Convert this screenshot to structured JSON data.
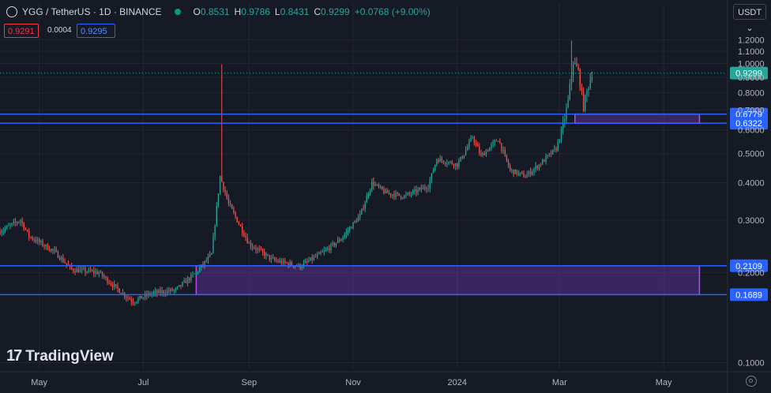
{
  "header": {
    "title": "YGG / TetherUS · 1D · BINANCE",
    "open_label": "O",
    "open": "0.8531",
    "high_label": "H",
    "high": "0.9786",
    "low_label": "L",
    "low": "0.8431",
    "close_label": "C",
    "close": "0.9299",
    "change": "+0.0768 (+9.00%)"
  },
  "trade": {
    "sell": "0.9291",
    "spread": "0.0004",
    "buy": "0.9295"
  },
  "currency_button": "USDT",
  "watermark": "TradingView",
  "colors": {
    "up": "#26a69a",
    "down": "#ef5350",
    "background": "#161a25",
    "level_line": "#2962ff",
    "zone_fill": "#7b3fd0"
  },
  "chart_data": {
    "type": "candlestick",
    "y_scale": "log",
    "ylim": [
      0.095,
      1.32
    ],
    "y_ticks": [
      {
        "value": 0.1,
        "label": "0.1000"
      },
      {
        "value": 0.2,
        "label": "0.2000"
      },
      {
        "value": 0.3,
        "label": "0.3000"
      },
      {
        "value": 0.4,
        "label": "0.4000"
      },
      {
        "value": 0.5,
        "label": "0.5000"
      },
      {
        "value": 0.6,
        "label": "0.6000"
      },
      {
        "value": 0.7,
        "label": "0.7000"
      },
      {
        "value": 0.8,
        "label": "0.8000"
      },
      {
        "value": 0.9,
        "label": "0.9000"
      },
      {
        "value": 1.0,
        "label": "1.0000"
      },
      {
        "value": 1.1,
        "label": "1.1000"
      },
      {
        "value": 1.2,
        "label": "1.2000"
      }
    ],
    "x_ticks": [
      {
        "date": "2023-05-01",
        "label": "May"
      },
      {
        "date": "2023-07-01",
        "label": "Jul"
      },
      {
        "date": "2023-09-01",
        "label": "Sep"
      },
      {
        "date": "2023-11-01",
        "label": "Nov"
      },
      {
        "date": "2024-01-01",
        "label": "2024"
      },
      {
        "date": "2024-03-01",
        "label": "Mar"
      },
      {
        "date": "2024-05-01",
        "label": "May"
      }
    ],
    "x_range": [
      "2023-04-08",
      "2024-06-07"
    ],
    "last_price": {
      "value": 0.9299,
      "label": "0.9299"
    },
    "levels": [
      {
        "value": 0.6779,
        "label": "0.6779"
      },
      {
        "value": 0.6322,
        "label": "0.6322"
      },
      {
        "value": 0.2109,
        "label": "0.2109"
      },
      {
        "value": 0.1689,
        "label": "0.1689"
      }
    ],
    "zones": [
      {
        "from": "2024-03-10",
        "to": "2024-05-22",
        "low": 0.6322,
        "high": 0.6779
      },
      {
        "from": "2023-08-01",
        "to": "2024-05-22",
        "low": 0.1689,
        "high": 0.2109
      }
    ],
    "price_path": [
      [
        "2023-04-08",
        0.275
      ],
      [
        "2023-04-20",
        0.3
      ],
      [
        "2023-04-25",
        0.265
      ],
      [
        "2023-05-10",
        0.235
      ],
      [
        "2023-05-20",
        0.205
      ],
      [
        "2023-06-05",
        0.2
      ],
      [
        "2023-06-15",
        0.178
      ],
      [
        "2023-06-25",
        0.16
      ],
      [
        "2023-07-05",
        0.17
      ],
      [
        "2023-07-20",
        0.175
      ],
      [
        "2023-08-01",
        0.2
      ],
      [
        "2023-08-10",
        0.23
      ],
      [
        "2023-08-15",
        0.42
      ],
      [
        "2023-08-20",
        0.34
      ],
      [
        "2023-09-01",
        0.25
      ],
      [
        "2023-09-15",
        0.22
      ],
      [
        "2023-10-01",
        0.21
      ],
      [
        "2023-10-15",
        0.235
      ],
      [
        "2023-10-25",
        0.26
      ],
      [
        "2023-11-05",
        0.31
      ],
      [
        "2023-11-12",
        0.4
      ],
      [
        "2023-11-20",
        0.37
      ],
      [
        "2023-12-01",
        0.36
      ],
      [
        "2023-12-15",
        0.39
      ],
      [
        "2023-12-20",
        0.48
      ],
      [
        "2024-01-01",
        0.46
      ],
      [
        "2024-01-05",
        0.5
      ],
      [
        "2024-01-10",
        0.57
      ],
      [
        "2024-01-15",
        0.49
      ],
      [
        "2024-01-25",
        0.56
      ],
      [
        "2024-02-01",
        0.44
      ],
      [
        "2024-02-10",
        0.42
      ],
      [
        "2024-02-20",
        0.47
      ],
      [
        "2024-02-28",
        0.52
      ],
      [
        "2024-03-03",
        0.62
      ],
      [
        "2024-03-06",
        0.75
      ],
      [
        "2024-03-09",
        1.02
      ],
      [
        "2024-03-12",
        0.94
      ],
      [
        "2024-03-15",
        0.72
      ],
      [
        "2024-03-18",
        0.85
      ],
      [
        "2024-03-20",
        0.93
      ]
    ],
    "spikes": [
      {
        "date": "2023-08-16",
        "high": 0.995
      },
      {
        "date": "2024-03-08",
        "high": 1.195
      }
    ]
  }
}
